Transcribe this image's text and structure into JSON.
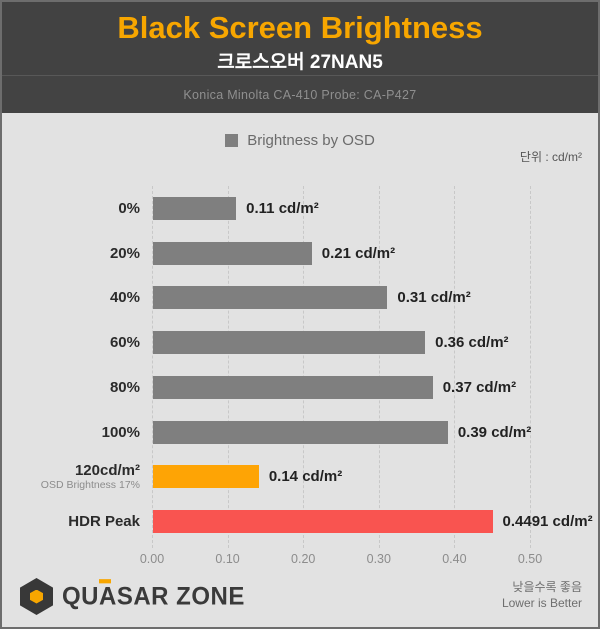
{
  "header": {
    "title": "Black Screen Brightness",
    "subtitle": "크로스오버 27NAN5",
    "equipment": "Konica Minolta CA-410 Probe: CA-P427"
  },
  "legend": {
    "label": "Brightness by OSD",
    "swatch_color": "#7f7f7f"
  },
  "unit_label": "단위 : cd/m²",
  "chart_data": {
    "type": "bar",
    "orientation": "horizontal",
    "title": "Black Screen Brightness",
    "legend": "Brightness by OSD",
    "unit": "cd/m²",
    "categories": [
      "0%",
      "20%",
      "40%",
      "60%",
      "80%",
      "100%",
      "120cd/m²",
      "HDR Peak"
    ],
    "category_sub_labels": [
      "",
      "",
      "",
      "",
      "",
      "",
      "OSD Brightness 17%",
      ""
    ],
    "values": [
      0.11,
      0.21,
      0.31,
      0.36,
      0.37,
      0.39,
      0.14,
      0.4491
    ],
    "value_labels": [
      "0.11 cd/m²",
      "0.21 cd/m²",
      "0.31 cd/m²",
      "0.36 cd/m²",
      "0.37 cd/m²",
      "0.39 cd/m²",
      "0.14 cd/m²",
      "0.4491 cd/m²"
    ],
    "bar_colors": [
      "#7f7f7f",
      "#7f7f7f",
      "#7f7f7f",
      "#7f7f7f",
      "#7f7f7f",
      "#7f7f7f",
      "#fea405",
      "#f95450"
    ],
    "xlim": [
      0,
      0.5
    ],
    "x_ticks": [
      "0.00",
      "0.10",
      "0.20",
      "0.30",
      "0.40",
      "0.50"
    ],
    "grid": "dashed-vertical",
    "lower_is_better": true
  },
  "footer": {
    "logo_text": "QUASAR ZONE",
    "note_ko": "낮을수록 좋음",
    "note_en": "Lower is Better"
  },
  "colors": {
    "header_bg": "#424242",
    "title_orange": "#f7a600",
    "body_bg": "#e2e2e2",
    "bar_gray": "#7f7f7f",
    "bar_orange": "#fea405",
    "bar_red": "#f95450",
    "gridline": "#c8c8c8"
  }
}
